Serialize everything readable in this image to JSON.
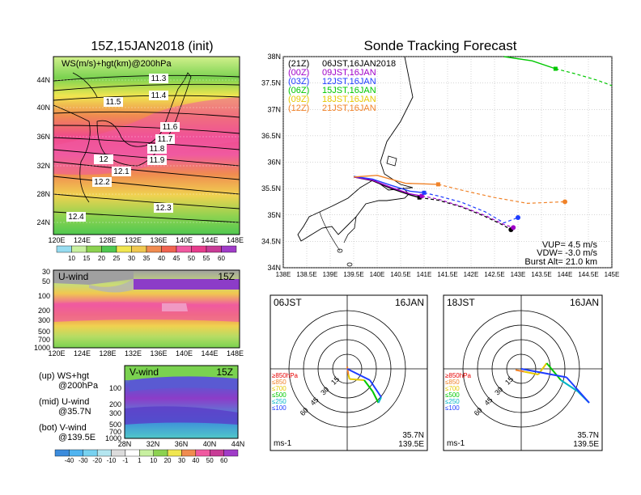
{
  "left_panel": {
    "title": "15Z,15JAN2018 (init)",
    "map_label": "WS(m/s)+hgt(km)@200hPa",
    "map_lat_ticks": [
      "44N",
      "40N",
      "36N",
      "32N",
      "28N",
      "24N"
    ],
    "map_lon_ticks": [
      "120E",
      "124E",
      "128E",
      "132E",
      "136E",
      "140E",
      "144E",
      "148E"
    ],
    "contour_labels": [
      "11.3",
      "11.4",
      "11.5",
      "11.6",
      "11.7",
      "11.8",
      "11.9",
      "12",
      "12.1",
      "12.2",
      "12.3",
      "12.4"
    ],
    "ws_colorbar": [
      "10",
      "15",
      "20",
      "25",
      "30",
      "35",
      "40",
      "45",
      "50",
      "55",
      "60"
    ],
    "uwind_label": "U-wind",
    "uwind_time": "15Z",
    "vwind_label": "V-wind",
    "vwind_time": "15Z",
    "pressure_ticks": [
      "30",
      "50",
      "100",
      "200",
      "300",
      "500",
      "700",
      "1000"
    ],
    "vwind_pressure_ticks": [
      "100",
      "200",
      "300",
      "500",
      "700",
      "1000"
    ],
    "vwind_lat_ticks": [
      "28N",
      "32N",
      "36N",
      "40N",
      "44N"
    ],
    "legend_lines": [
      "(up) WS+hgt",
      "@200hPa",
      "(mid) U-wind",
      "@35.7N",
      "(bot) V-wind",
      "@139.5E"
    ],
    "uv_colorbar": [
      "-40",
      "-30",
      "-20",
      "-10",
      "-1",
      "1",
      "10",
      "20",
      "30",
      "40",
      "50",
      "60"
    ]
  },
  "tracking": {
    "title": "Sonde Tracking Forecast",
    "lat_ticks": [
      "38N",
      "37.5N",
      "37N",
      "36.5N",
      "36N",
      "35.5N",
      "35N",
      "34.5N",
      "34N"
    ],
    "lon_ticks": [
      "138E",
      "138.5E",
      "139E",
      "139.5E",
      "140E",
      "140.5E",
      "141E",
      "141.5E",
      "142E",
      "142.5E",
      "143E",
      "143.5E",
      "144E",
      "144.5E",
      "145E"
    ],
    "legend": [
      {
        "code": "(21Z)",
        "text": "06JST,16JAN2018",
        "color": "#000000"
      },
      {
        "code": "(00Z)",
        "text": "09JST,16JAN",
        "color": "#a000c8"
      },
      {
        "code": "(03Z)",
        "text": "12JST,16JAN",
        "color": "#1e3cff"
      },
      {
        "code": "(06Z)",
        "text": "15JST,16JAN",
        "color": "#00c800"
      },
      {
        "code": "(09Z)",
        "text": "18JST,16JAN",
        "color": "#e6c800"
      },
      {
        "code": "(12Z)",
        "text": "21JST,16JAN",
        "color": "#f08228"
      }
    ],
    "vup": "VUP= 4.5 m/s",
    "vdw": "VDW= -3.0 m/s",
    "burst": "Burst Alt= 21.0 km"
  },
  "hodographs": [
    {
      "time": "06JST",
      "date": "16JAN",
      "lat": "35.7N",
      "lon": "139.5E",
      "unit": "ms-1"
    },
    {
      "time": "18JST",
      "date": "16JAN",
      "lat": "35.7N",
      "lon": "139.5E",
      "unit": "ms-1"
    }
  ],
  "hodo_rings": [
    "15",
    "30",
    "45",
    "60"
  ],
  "hodo_levels": [
    {
      "label": "≥850hPa",
      "color": "#e60000"
    },
    {
      "label": "≤850",
      "color": "#f08228"
    },
    {
      "label": "≤700",
      "color": "#e6c800"
    },
    {
      "label": "≤500",
      "color": "#00c800"
    },
    {
      "label": "≤250",
      "color": "#00b4c8"
    },
    {
      "label": "≤100",
      "color": "#1e3cff"
    }
  ],
  "chart_data": [
    {
      "type": "line",
      "title": "Sonde Tracking Forecast",
      "xlim": [
        138,
        145
      ],
      "ylim": [
        34,
        38
      ],
      "series": [
        {
          "name": "(21Z) 06JST,16JAN2018",
          "x": [
            139.5,
            139.9,
            140.3,
            140.7,
            140.9
          ],
          "y": [
            35.72,
            35.65,
            35.5,
            35.38,
            35.33
          ],
          "forecast_x": [
            141.3,
            141.8,
            142.3,
            142.7,
            142.85
          ],
          "forecast_y": [
            35.28,
            35.15,
            34.97,
            34.8,
            34.72
          ]
        },
        {
          "name": "(00Z) 09JST,16JAN",
          "x": [
            139.5,
            139.9,
            140.3,
            140.7,
            140.95
          ],
          "y": [
            35.72,
            35.66,
            35.52,
            35.4,
            35.36
          ],
          "forecast_x": [
            141.3,
            141.8,
            142.3,
            142.7,
            142.9
          ],
          "forecast_y": [
            35.3,
            35.16,
            34.99,
            34.82,
            34.76
          ]
        },
        {
          "name": "(03Z) 12JST,16JAN",
          "x": [
            139.5,
            139.9,
            140.3,
            140.7,
            141.0
          ],
          "y": [
            35.73,
            35.68,
            35.56,
            35.45,
            35.42
          ],
          "forecast_x": [
            141.3,
            141.8,
            142.3,
            142.7,
            143.0
          ],
          "forecast_y": [
            35.36,
            35.24,
            35.06,
            34.85,
            34.95
          ]
        },
        {
          "name": "(06Z) 15JST,16JAN",
          "x": [
            142.7,
            143.3,
            143.8
          ],
          "y": [
            38.0,
            37.92,
            37.77
          ],
          "forecast_x": [
            144.2,
            144.7,
            145.0
          ],
          "forecast_y": [
            37.68,
            37.55,
            37.45
          ]
        },
        {
          "name": "(12Z) 21JST,16JAN",
          "x": [
            139.5,
            140.0,
            140.6,
            141.3
          ],
          "y": [
            35.72,
            35.75,
            35.6,
            35.58
          ],
          "forecast_x": [
            141.8,
            142.5,
            143.2,
            144.0
          ],
          "forecast_y": [
            35.47,
            35.33,
            35.22,
            35.25
          ]
        }
      ]
    }
  ]
}
